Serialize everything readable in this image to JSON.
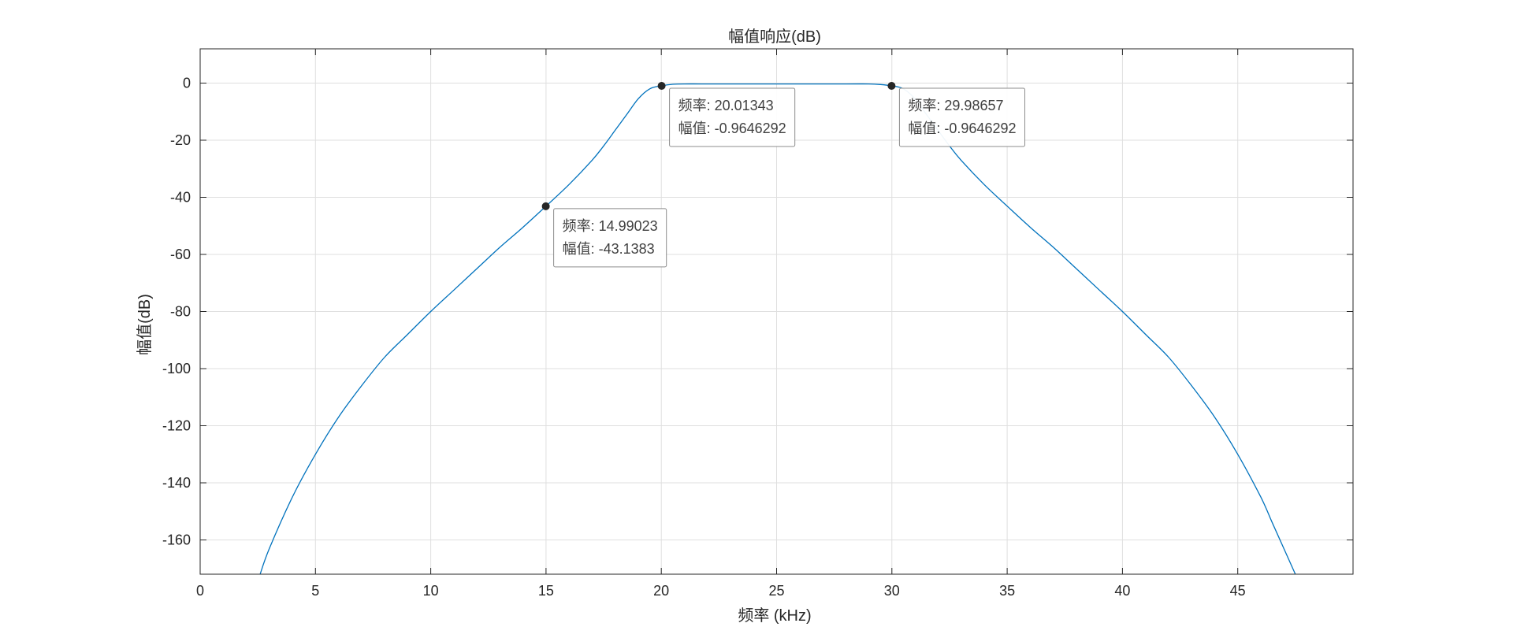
{
  "chart_data": {
    "type": "line",
    "title": "幅值响应(dB)",
    "xlabel": "频率 (kHz)",
    "ylabel": "幅值(dB)",
    "xlim": [
      0,
      50
    ],
    "ylim": [
      -172,
      12
    ],
    "xticks": [
      0,
      5,
      10,
      15,
      20,
      25,
      30,
      35,
      40,
      45
    ],
    "yticks": [
      0,
      -20,
      -40,
      -60,
      -80,
      -100,
      -120,
      -140,
      -160
    ],
    "grid": true,
    "line_color": "#0072bd",
    "series": [
      {
        "x": [
          2.6,
          3,
          4,
          5,
          6,
          7,
          8,
          9,
          10,
          11,
          12,
          13,
          14,
          15,
          16,
          17,
          17.5,
          18,
          18.5,
          19,
          19.5,
          20,
          20.5,
          21,
          22,
          25,
          28,
          29,
          29.5,
          30,
          30.5,
          31,
          31.5,
          32,
          32.5,
          33,
          34,
          35,
          36,
          37,
          38,
          39,
          40,
          41,
          42,
          43,
          44,
          45,
          46,
          46.5,
          47,
          47.5
        ],
        "y": [
          -172,
          -163,
          -145,
          -130,
          -117,
          -106,
          -96,
          -88,
          -80,
          -72.5,
          -65,
          -57.5,
          -50.5,
          -43.1,
          -35.5,
          -27,
          -22,
          -16.5,
          -11,
          -5.5,
          -2,
          -0.96,
          -0.4,
          -0.3,
          -0.3,
          -0.3,
          -0.3,
          -0.3,
          -0.5,
          -0.96,
          -2,
          -5.5,
          -11,
          -16.5,
          -22,
          -27,
          -35.5,
          -43.1,
          -50.5,
          -57.5,
          -65,
          -72.5,
          -80,
          -88,
          -96,
          -106,
          -117,
          -130,
          -145,
          -154,
          -163,
          -172
        ]
      }
    ],
    "datatips": [
      {
        "x": 14.99023,
        "y": -43.1383,
        "x_label": "频率: 14.99023",
        "y_label": "幅值: -43.1383"
      },
      {
        "x": 20.01343,
        "y": -0.9646292,
        "x_label": "频率: 20.01343",
        "y_label": "幅值: -0.9646292"
      },
      {
        "x": 29.98657,
        "y": -0.9646292,
        "x_label": "频率: 29.98657",
        "y_label": "幅值: -0.9646292"
      }
    ]
  }
}
